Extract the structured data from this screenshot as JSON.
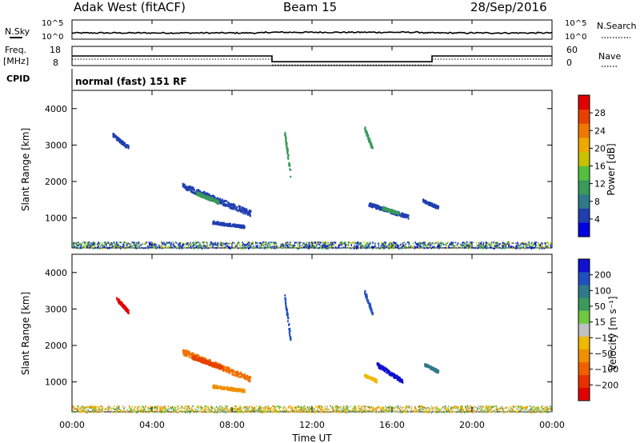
{
  "header": {
    "station": "Adak West (fitACF)",
    "beam": "Beam 15",
    "date": "28/Sep/2016"
  },
  "noise_panel": {
    "left_label": "N.Sky",
    "right_label": "N.Search",
    "left_ticks": [
      "10^5",
      "10^0"
    ],
    "right_ticks": [
      "10^5",
      "10^0"
    ]
  },
  "freq_panel": {
    "left_label_1": "Freq.",
    "left_label_2": "[MHz]",
    "right_label": "Nave",
    "left_ticks": [
      "18",
      "8"
    ],
    "right_ticks": [
      "60",
      "0"
    ],
    "freq_steps": [
      {
        "start_hour": 0,
        "end_hour": 10,
        "value": 13
      },
      {
        "start_hour": 10,
        "end_hour": 18,
        "value": 10
      },
      {
        "start_hour": 18,
        "end_hour": 24,
        "value": 13
      }
    ]
  },
  "cpid": {
    "label": "CPID",
    "value": "normal (fast) 151 RF"
  },
  "x_axis": {
    "title": "Time UT",
    "ticks": [
      "00:00",
      "04:00",
      "08:00",
      "12:00",
      "16:00",
      "20:00",
      "00:00"
    ]
  },
  "chart_data": [
    {
      "type": "heatmap",
      "name": "power",
      "ylabel": "Slant Range [km]",
      "yticks": [
        "1000",
        "2000",
        "3000",
        "4000"
      ],
      "ylim": [
        180,
        4500
      ],
      "xlim": [
        0,
        24
      ],
      "colorbar": {
        "label": "Power [dB]",
        "ticks": [
          "4",
          "8",
          "12",
          "16",
          "20",
          "24",
          "28"
        ],
        "colors": [
          "#0000e0",
          "#1f3fb0",
          "#2f7a8a",
          "#3a9a5a",
          "#55c040",
          "#c8c000",
          "#f0a800",
          "#f07800",
          "#e84000",
          "#e00000"
        ]
      },
      "regions": [
        {
          "t0": 5.5,
          "t1": 8.9,
          "r0": 1900,
          "r1": 1150,
          "color": "#2040b0"
        },
        {
          "t0": 6.2,
          "t1": 7.3,
          "r0": 1700,
          "r1": 1450,
          "color": "#3a9a5a"
        },
        {
          "t0": 7.0,
          "t1": 8.6,
          "r0": 900,
          "r1": 780,
          "color": "#1f3fb0"
        },
        {
          "t0": 14.8,
          "t1": 16.8,
          "r0": 1400,
          "r1": 1050,
          "color": "#2040b0"
        },
        {
          "t0": 15.5,
          "t1": 16.3,
          "r0": 1300,
          "r1": 1150,
          "color": "#3a9a5a"
        },
        {
          "t0": 2.0,
          "t1": 2.8,
          "r0": 3300,
          "r1": 2950,
          "color": "#1f3fb0"
        },
        {
          "t0": 10.6,
          "t1": 10.9,
          "r0": 3400,
          "r1": 2200,
          "color": "#3a9a5a"
        },
        {
          "t0": 14.6,
          "t1": 15.0,
          "r0": 3500,
          "r1": 2900,
          "color": "#3a9a5a"
        },
        {
          "t0": 17.5,
          "t1": 18.3,
          "r0": 1500,
          "r1": 1300,
          "color": "#1f3fb0"
        }
      ]
    },
    {
      "type": "heatmap",
      "name": "velocity",
      "ylabel": "Slant Range [km]",
      "yticks": [
        "1000",
        "2000",
        "3000",
        "4000"
      ],
      "ylim": [
        180,
        4500
      ],
      "xlim": [
        0,
        24
      ],
      "colorbar": {
        "label": "Velocity [m s⁻¹]",
        "ticks": [
          "200",
          "100",
          "50",
          "15",
          "−15",
          "−50",
          "−100",
          "−200"
        ],
        "colors": [
          "#1010d0",
          "#2050c0",
          "#2f7a8a",
          "#3a9a5a",
          "#70c840",
          "#c0c0c0",
          "#f0b800",
          "#f09000",
          "#f06000",
          "#e83000",
          "#e00000"
        ]
      },
      "regions": [
        {
          "t0": 5.5,
          "t1": 8.9,
          "r0": 1850,
          "r1": 1100,
          "color": "#f07000"
        },
        {
          "t0": 6.0,
          "t1": 7.5,
          "r0": 1700,
          "r1": 1400,
          "color": "#e84000"
        },
        {
          "t0": 7.0,
          "t1": 8.6,
          "r0": 900,
          "r1": 780,
          "color": "#f09000"
        },
        {
          "t0": 15.2,
          "t1": 16.5,
          "r0": 1500,
          "r1": 1050,
          "color": "#1010d0"
        },
        {
          "t0": 14.6,
          "t1": 15.2,
          "r0": 1200,
          "r1": 1050,
          "color": "#f0b800"
        },
        {
          "t0": 2.2,
          "t1": 2.8,
          "r0": 3300,
          "r1": 2950,
          "color": "#e00000"
        },
        {
          "t0": 10.6,
          "t1": 10.9,
          "r0": 3400,
          "r1": 2200,
          "color": "#2050c0"
        },
        {
          "t0": 14.6,
          "t1": 15.0,
          "r0": 3500,
          "r1": 2900,
          "color": "#2050c0"
        },
        {
          "t0": 17.6,
          "t1": 18.3,
          "r0": 1500,
          "r1": 1300,
          "color": "#2f7a8a"
        }
      ]
    }
  ]
}
